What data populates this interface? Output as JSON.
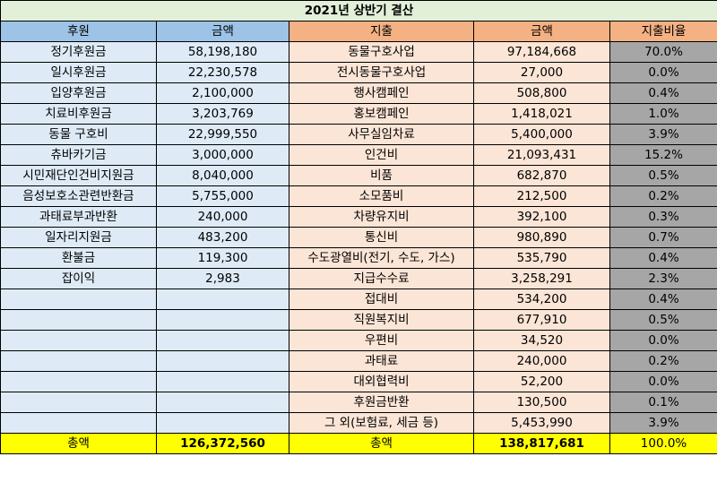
{
  "title": "2021년 상반기 결산",
  "headers": {
    "income_label": "후원",
    "income_amount": "금액",
    "expense_label": "지출",
    "expense_amount": "금액",
    "expense_ratio": "지출비율"
  },
  "rows": [
    {
      "income_label": "정기후원금",
      "income_amount": "58,198,180",
      "expense_label": "동물구호사업",
      "expense_amount": "97,184,668",
      "ratio": "70.0%"
    },
    {
      "income_label": "일시후원금",
      "income_amount": "22,230,578",
      "expense_label": "전시동물구호사업",
      "expense_amount": "27,000",
      "ratio": "0.0%"
    },
    {
      "income_label": "입양후원금",
      "income_amount": "2,100,000",
      "expense_label": "행사캠페인",
      "expense_amount": "508,800",
      "ratio": "0.4%"
    },
    {
      "income_label": "치료비후원금",
      "income_amount": "3,203,769",
      "expense_label": "홍보캠페인",
      "expense_amount": "1,418,021",
      "ratio": "1.0%"
    },
    {
      "income_label": "동물 구호비",
      "income_amount": "22,999,550",
      "expense_label": "사무실임차료",
      "expense_amount": "5,400,000",
      "ratio": "3.9%"
    },
    {
      "income_label": "츄바카기금",
      "income_amount": "3,000,000",
      "expense_label": "인건비",
      "expense_amount": "21,093,431",
      "ratio": "15.2%"
    },
    {
      "income_label": "시민재단인건비지원금",
      "income_amount": "8,040,000",
      "expense_label": "비품",
      "expense_amount": "682,870",
      "ratio": "0.5%"
    },
    {
      "income_label": "음성보호소관련반환금",
      "income_amount": "5,755,000",
      "expense_label": "소모품비",
      "expense_amount": "212,500",
      "ratio": "0.2%"
    },
    {
      "income_label": "과태료부과반환",
      "income_amount": "240,000",
      "expense_label": "차량유지비",
      "expense_amount": "392,100",
      "ratio": "0.3%"
    },
    {
      "income_label": "일자리지원금",
      "income_amount": "483,200",
      "expense_label": "통신비",
      "expense_amount": "980,890",
      "ratio": "0.7%"
    },
    {
      "income_label": "환불금",
      "income_amount": "119,300",
      "expense_label": "수도광열비(전기, 수도, 가스)",
      "expense_amount": "535,790",
      "ratio": "0.4%"
    },
    {
      "income_label": "잡이익",
      "income_amount": "2,983",
      "expense_label": "지급수수료",
      "expense_amount": "3,258,291",
      "ratio": "2.3%"
    },
    {
      "income_label": "",
      "income_amount": "",
      "expense_label": "접대비",
      "expense_amount": "534,200",
      "ratio": "0.4%"
    },
    {
      "income_label": "",
      "income_amount": "",
      "expense_label": "직원복지비",
      "expense_amount": "677,910",
      "ratio": "0.5%"
    },
    {
      "income_label": "",
      "income_amount": "",
      "expense_label": "우편비",
      "expense_amount": "34,520",
      "ratio": "0.0%"
    },
    {
      "income_label": "",
      "income_amount": "",
      "expense_label": "과태료",
      "expense_amount": "240,000",
      "ratio": "0.2%"
    },
    {
      "income_label": "",
      "income_amount": "",
      "expense_label": "대외협력비",
      "expense_amount": "52,200",
      "ratio": "0.0%"
    },
    {
      "income_label": "",
      "income_amount": "",
      "expense_label": "후원금반환",
      "expense_amount": "130,500",
      "ratio": "0.1%"
    },
    {
      "income_label": "",
      "income_amount": "",
      "expense_label": "그 외(보험료, 세금 등)",
      "expense_amount": "5,453,990",
      "ratio": "3.9%"
    }
  ],
  "totals": {
    "income_label": "총액",
    "income_amount": "126,372,560",
    "expense_label": "총액",
    "expense_amount": "138,817,681",
    "ratio": "100.0%"
  },
  "colors": {
    "title_bg": "#e2efd9",
    "income_header_bg": "#9dc3e6",
    "income_cell_bg": "#deebf7",
    "expense_header_bg": "#f4b183",
    "expense_cell_bg": "#fbe5d6",
    "ratio_cell_bg": "#a6a6a6",
    "total_bg": "#ffff00"
  }
}
